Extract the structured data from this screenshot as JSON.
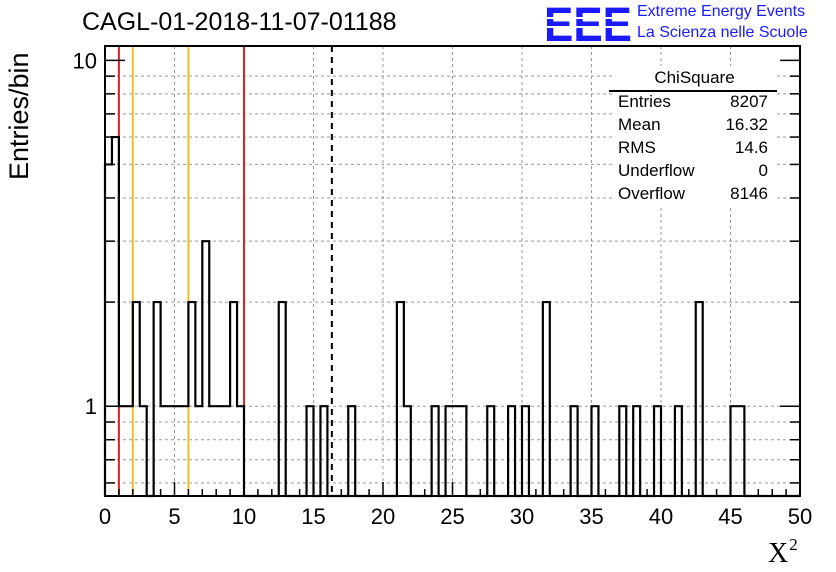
{
  "title": "CAGL-01-2018-11-07-01188",
  "logo": {
    "letters": "EEE",
    "line1": "Extreme Energy Events",
    "line2": "La Scienza nelle Scuole",
    "color": "#1a1aff"
  },
  "chart_data": {
    "type": "histogram",
    "xlabel": "X",
    "xlabel_superscript": "2",
    "ylabel": "Entries/bin",
    "x_scale": "linear",
    "y_scale": "log",
    "xlim": [
      0,
      50
    ],
    "ylim": [
      0.55,
      11
    ],
    "grid": true,
    "bin_width": 0.5,
    "x_ticks": [
      "0",
      "5",
      "10",
      "15",
      "20",
      "25",
      "30",
      "35",
      "40",
      "45",
      "50"
    ],
    "y_ticks": [
      "1",
      "10"
    ],
    "bins": [
      {
        "x": 0.0,
        "count": 5
      },
      {
        "x": 0.5,
        "count": 6
      },
      {
        "x": 1.0,
        "count": 1
      },
      {
        "x": 1.5,
        "count": 1
      },
      {
        "x": 2.0,
        "count": 2
      },
      {
        "x": 2.5,
        "count": 1
      },
      {
        "x": 3.5,
        "count": 2
      },
      {
        "x": 4.0,
        "count": 1
      },
      {
        "x": 4.5,
        "count": 1
      },
      {
        "x": 5.0,
        "count": 1
      },
      {
        "x": 5.5,
        "count": 1
      },
      {
        "x": 6.0,
        "count": 2
      },
      {
        "x": 6.5,
        "count": 1
      },
      {
        "x": 7.0,
        "count": 3
      },
      {
        "x": 7.5,
        "count": 1
      },
      {
        "x": 8.0,
        "count": 1
      },
      {
        "x": 8.5,
        "count": 1
      },
      {
        "x": 9.0,
        "count": 2
      },
      {
        "x": 9.5,
        "count": 1
      },
      {
        "x": 12.5,
        "count": 2
      },
      {
        "x": 14.5,
        "count": 1
      },
      {
        "x": 15.5,
        "count": 1
      },
      {
        "x": 17.5,
        "count": 1
      },
      {
        "x": 21.0,
        "count": 2
      },
      {
        "x": 21.5,
        "count": 1
      },
      {
        "x": 23.5,
        "count": 1
      },
      {
        "x": 24.5,
        "count": 1
      },
      {
        "x": 25.0,
        "count": 1
      },
      {
        "x": 25.5,
        "count": 1
      },
      {
        "x": 27.5,
        "count": 1
      },
      {
        "x": 29.0,
        "count": 1
      },
      {
        "x": 30.0,
        "count": 1
      },
      {
        "x": 31.5,
        "count": 2
      },
      {
        "x": 33.5,
        "count": 1
      },
      {
        "x": 35.0,
        "count": 1
      },
      {
        "x": 37.0,
        "count": 1
      },
      {
        "x": 38.0,
        "count": 1
      },
      {
        "x": 39.5,
        "count": 1
      },
      {
        "x": 41.0,
        "count": 1
      },
      {
        "x": 42.5,
        "count": 2
      },
      {
        "x": 45.0,
        "count": 1
      },
      {
        "x": 45.5,
        "count": 1
      }
    ],
    "reference_lines": [
      {
        "x": 1,
        "color": "#dd2222"
      },
      {
        "x": 2,
        "color": "#f0c020"
      },
      {
        "x": 6,
        "color": "#f0c020"
      },
      {
        "x": 10,
        "color": "#dd2222"
      },
      {
        "x": 16.32,
        "color": "#000000",
        "style": "dashed"
      }
    ],
    "stats": {
      "title": "ChiSquare",
      "rows": [
        {
          "label": "Entries",
          "value": "8207"
        },
        {
          "label": "Mean",
          "value": "16.32"
        },
        {
          "label": "RMS",
          "value": "14.6"
        },
        {
          "label": "Underflow",
          "value": "0"
        },
        {
          "label": "Overflow",
          "value": "8146"
        }
      ]
    }
  }
}
